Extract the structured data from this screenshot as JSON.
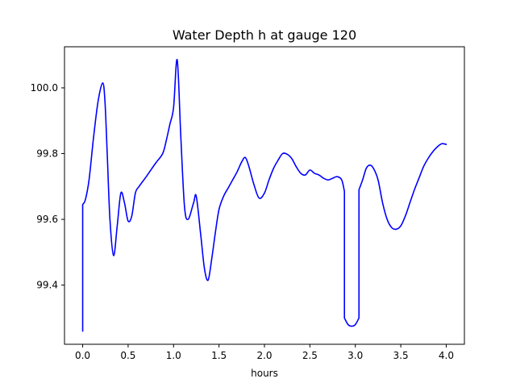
{
  "chart_data": {
    "type": "line",
    "title": "Water Depth h at gauge 120",
    "xlabel": "hours",
    "ylabel": "",
    "xlim": [
      -0.2,
      4.2
    ],
    "ylim": [
      99.22,
      100.125
    ],
    "grid": false,
    "legend": "none",
    "x_ticks": [
      0.0,
      0.5,
      1.0,
      1.5,
      2.0,
      2.5,
      3.0,
      3.5,
      4.0
    ],
    "x_tick_labels": [
      "0.0",
      "0.5",
      "1.0",
      "1.5",
      "2.0",
      "2.5",
      "3.0",
      "3.5",
      "4.0"
    ],
    "y_ticks": [
      99.4,
      99.6,
      99.8,
      100.0
    ],
    "y_tick_labels": [
      "99.4",
      "99.6",
      "99.8",
      "100.0"
    ],
    "series": [
      {
        "color": "#0000ff",
        "x": [
          0.0,
          0.0,
          0.03,
          0.07,
          0.12,
          0.17,
          0.22,
          0.245,
          0.27,
          0.3,
          0.34,
          0.38,
          0.42,
          0.46,
          0.5,
          0.54,
          0.58,
          0.62,
          0.7,
          0.8,
          0.88,
          0.92,
          0.96,
          1.0,
          1.04,
          1.08,
          1.12,
          1.16,
          1.22,
          1.25,
          1.3,
          1.34,
          1.38,
          1.42,
          1.46,
          1.5,
          1.55,
          1.6,
          1.65,
          1.7,
          1.75,
          1.79,
          1.83,
          1.88,
          1.94,
          2.0,
          2.05,
          2.1,
          2.15,
          2.2,
          2.25,
          2.3,
          2.35,
          2.4,
          2.45,
          2.5,
          2.55,
          2.6,
          2.65,
          2.7,
          2.75,
          2.8,
          2.85,
          2.88,
          2.88,
          2.92,
          2.96,
          3.0,
          3.04,
          3.04,
          3.08,
          3.12,
          3.16,
          3.2,
          3.25,
          3.3,
          3.35,
          3.4,
          3.45,
          3.5,
          3.55,
          3.6,
          3.65,
          3.7,
          3.75,
          3.8,
          3.85,
          3.9,
          3.95,
          4.0
        ],
        "y": [
          99.26,
          99.645,
          99.66,
          99.72,
          99.85,
          99.96,
          100.015,
          99.96,
          99.8,
          99.6,
          99.49,
          99.58,
          99.68,
          99.65,
          99.595,
          99.61,
          99.68,
          99.7,
          99.73,
          99.77,
          99.8,
          99.84,
          99.89,
          99.94,
          100.085,
          99.85,
          99.64,
          99.6,
          99.65,
          99.67,
          99.55,
          99.45,
          99.415,
          99.48,
          99.56,
          99.63,
          99.67,
          99.695,
          99.72,
          99.745,
          99.775,
          99.788,
          99.76,
          99.71,
          99.665,
          99.68,
          99.72,
          99.755,
          99.78,
          99.8,
          99.798,
          99.785,
          99.76,
          99.74,
          99.735,
          99.75,
          99.74,
          99.735,
          99.725,
          99.72,
          99.725,
          99.73,
          99.72,
          99.685,
          99.3,
          99.28,
          99.275,
          99.28,
          99.3,
          99.69,
          99.72,
          99.755,
          99.765,
          99.755,
          99.72,
          99.65,
          99.6,
          99.575,
          99.57,
          99.58,
          99.61,
          99.65,
          99.69,
          99.725,
          99.76,
          99.785,
          99.805,
          99.82,
          99.83,
          99.828
        ]
      }
    ]
  }
}
